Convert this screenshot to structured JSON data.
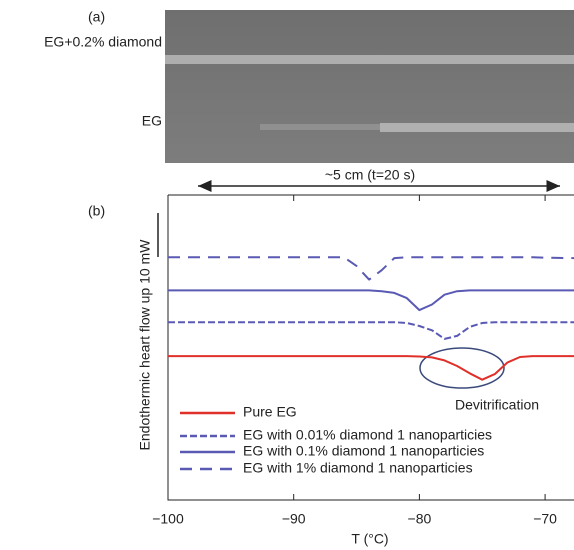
{
  "panel_a": {
    "label": "(a)",
    "sample_labels": [
      "EG+0.2% diamond",
      "EG"
    ],
    "scale_label": "~5 cm (t=20 s)"
  },
  "chart_data": {
    "type": "line",
    "panel_label": "(b)",
    "x_label": "T (°C)",
    "y_label": "Endothermic heart flow up 10 mW",
    "annotation": "Devitrification",
    "x": [
      -100,
      -90,
      -86,
      -85,
      -84,
      -83,
      -82,
      -81,
      -80,
      -79,
      -78,
      -77,
      -76,
      -75,
      -74,
      -73,
      -72,
      -71,
      -70,
      -67.7
    ],
    "series": [
      {
        "name": "Pure EG",
        "color": "#e0302a",
        "style": "solid",
        "values": [
          33.5,
          33.5,
          33.5,
          33.5,
          33.5,
          33.5,
          33.5,
          33.5,
          33.4,
          33.2,
          32.5,
          31.2,
          29.5,
          28,
          29.3,
          32,
          33.3,
          33.5,
          33.5,
          33.5
        ]
      },
      {
        "name": "EG with 0.01% diamond 1 nanoparticies",
        "color": "#5a5ab4",
        "style": "dense",
        "values": [
          41.4,
          41.4,
          41.4,
          41.4,
          41.4,
          41.4,
          41.4,
          41.2,
          40.5,
          39.5,
          37.5,
          38.2,
          40.3,
          41.2,
          41.4,
          41.4,
          41.4,
          41.4,
          41.4,
          41.4
        ]
      },
      {
        "name": "EG with 0.1% diamond 1 nanoparticies",
        "color": "#5a5ab4",
        "style": "solid",
        "values": [
          48.8,
          48.8,
          48.8,
          48.8,
          48.8,
          48.6,
          48.2,
          47,
          44.2,
          45.5,
          47.8,
          48.6,
          48.8,
          48.8,
          48.8,
          48.8,
          48.8,
          48.8,
          48.8,
          48.8
        ]
      },
      {
        "name": "EG with 1% diamond 1 nanoparticies",
        "color": "#5a5ab4",
        "style": "sparse",
        "values": [
          56.5,
          56.5,
          56.5,
          54.5,
          51.3,
          53.5,
          56.3,
          56.5,
          56.5,
          56.5,
          56.5,
          56.5,
          56.5,
          56.5,
          56.5,
          56.5,
          56.5,
          56.5,
          56.4,
          56.3
        ]
      }
    ],
    "xlim": [
      -100,
      -67.7
    ],
    "xticks": [
      {
        "value": -100,
        "label": "−100"
      },
      {
        "value": -90,
        "label": "−90"
      },
      {
        "value": -80,
        "label": "−80"
      },
      {
        "value": -70,
        "label": "−70"
      }
    ],
    "ylim": [
      0,
      71
    ],
    "legend": "lower left"
  }
}
